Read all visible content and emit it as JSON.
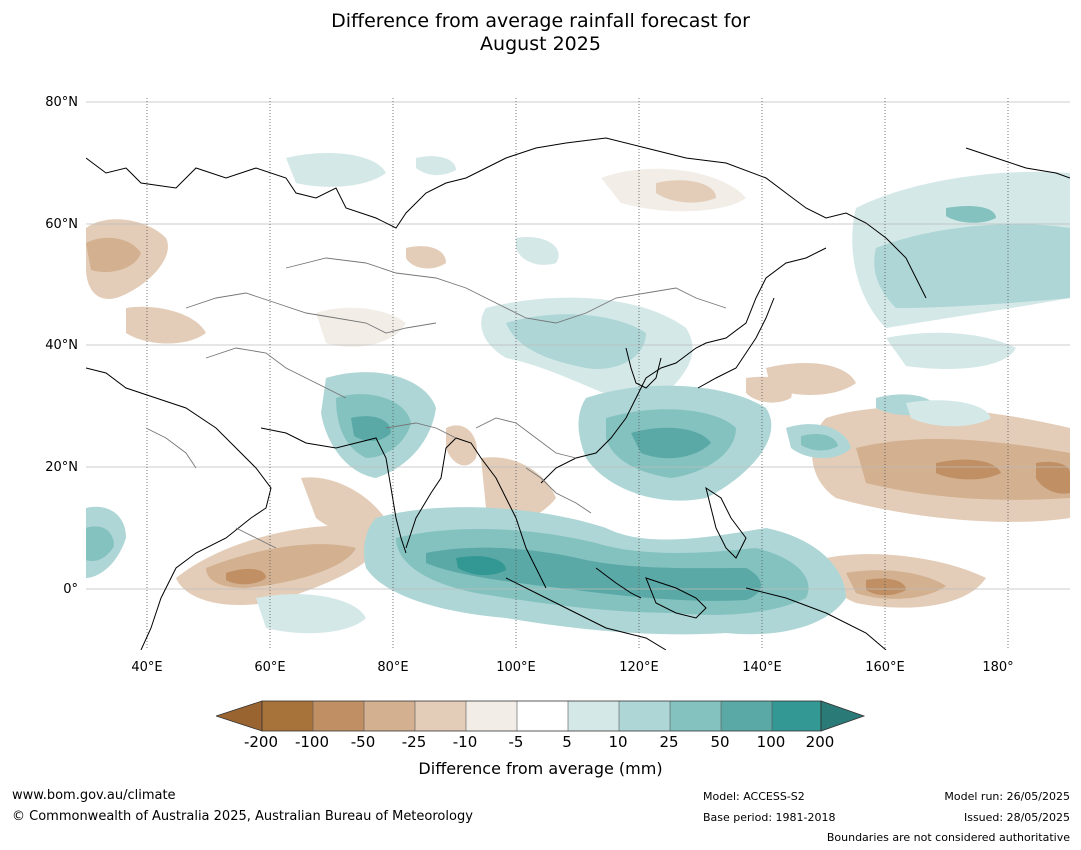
{
  "title_line1": "Difference from average rainfall forecast for",
  "title_line2": "August 2025",
  "map": {
    "lat_labels": [
      {
        "label": "80°N",
        "lat": 80
      },
      {
        "label": "60°N",
        "lat": 60
      },
      {
        "label": "40°N",
        "lat": 40
      },
      {
        "label": "20°N",
        "lat": 20
      },
      {
        "label": "0°",
        "lat": 0
      }
    ],
    "lon_labels": [
      {
        "label": "40°E",
        "lon": 40
      },
      {
        "label": "60°E",
        "lon": 60
      },
      {
        "label": "80°E",
        "lon": 80
      },
      {
        "label": "100°E",
        "lon": 100
      },
      {
        "label": "120°E",
        "lon": 120
      },
      {
        "label": "140°E",
        "lon": 140
      },
      {
        "label": "160°E",
        "lon": 160
      },
      {
        "label": "180°",
        "lon": 180
      }
    ],
    "lon_range": [
      30,
      190
    ],
    "lat_range": [
      -10,
      81
    ],
    "grid": true
  },
  "colorbar": {
    "ticks": [
      "-200",
      "-100",
      "-50",
      "-25",
      "-10",
      "-5",
      "5",
      "10",
      "25",
      "50",
      "100",
      "200"
    ],
    "colors": [
      "#a8733b",
      "#c09064",
      "#d3b08f",
      "#e3cdb8",
      "#f2ede7",
      "#ffffff",
      "#d4e8e8",
      "#aed6d6",
      "#84c2c0",
      "#5aa9a7",
      "#339893"
    ],
    "under_color": "#9a6430",
    "over_color": "#2a7a77",
    "label": "Difference from average (mm)"
  },
  "footer": {
    "website": "www.bom.gov.au/climate",
    "copyright": "© Commonwealth of Australia 2025, Australian Bureau of Meteorology",
    "model": "Model: ACCESS-S2",
    "base_period": "Base period: 1981-2018",
    "model_run": "Model run: 26/05/2025",
    "issued": "Issued: 28/05/2025",
    "disclaimer": "Boundaries are not considered authoritative"
  }
}
